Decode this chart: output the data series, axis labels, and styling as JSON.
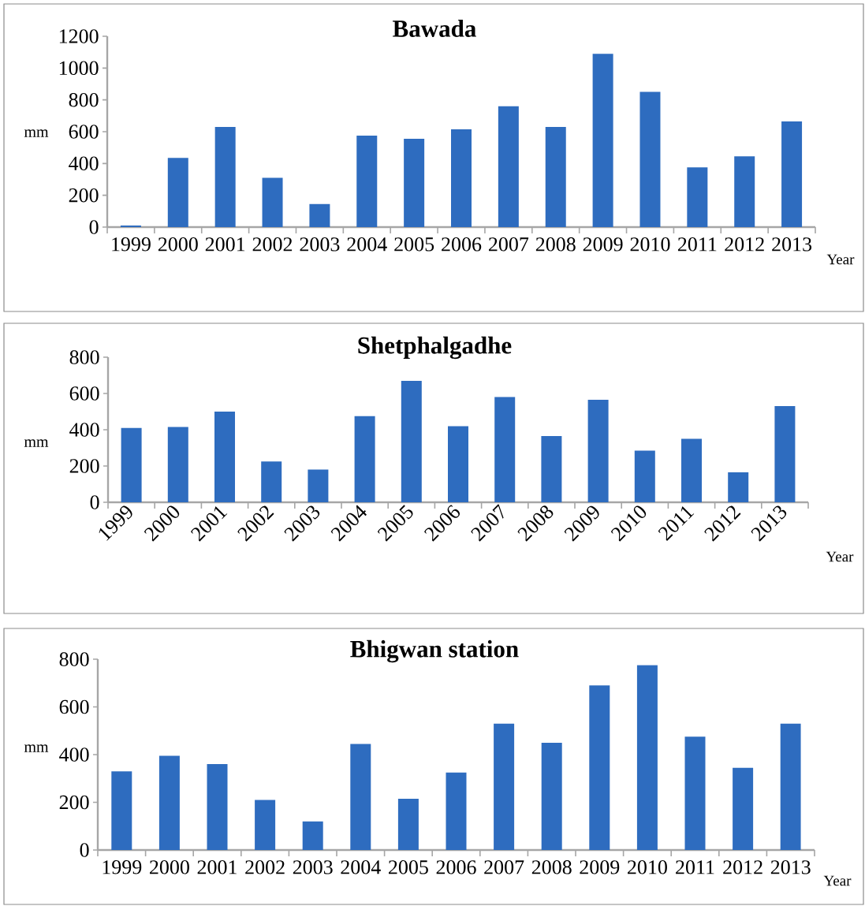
{
  "chart_data": [
    {
      "type": "bar",
      "title": "Bawada",
      "xlabel": "Year",
      "ylabel": "mm",
      "color": "#2e6cbf",
      "categories": [
        "1999",
        "2000",
        "2001",
        "2002",
        "2003",
        "2004",
        "2005",
        "2006",
        "2007",
        "2008",
        "2009",
        "2010",
        "2011",
        "2012",
        "2013"
      ],
      "values": [
        10,
        435,
        630,
        310,
        145,
        575,
        555,
        615,
        760,
        630,
        1090,
        850,
        375,
        445,
        665
      ],
      "ylim": [
        0,
        1200
      ],
      "yticks": [
        0,
        200,
        400,
        600,
        800,
        1000,
        1200
      ]
    },
    {
      "type": "bar",
      "title": "Shetphalgadhe",
      "xlabel": "Year",
      "ylabel": "mm",
      "color": "#2e6cbf",
      "categories": [
        "1999",
        "2000",
        "2001",
        "2002",
        "2003",
        "2004",
        "2005",
        "2006",
        "2007",
        "2008",
        "2009",
        "2010",
        "2011",
        "2012",
        "2013"
      ],
      "values": [
        410,
        415,
        500,
        225,
        180,
        475,
        670,
        420,
        580,
        365,
        565,
        285,
        350,
        165,
        530
      ],
      "ylim": [
        0,
        800
      ],
      "yticks": [
        0,
        200,
        400,
        600,
        800
      ]
    },
    {
      "type": "bar",
      "title": "Bhigwan station",
      "xlabel": "Year",
      "ylabel": "mm",
      "color": "#2e6cbf",
      "categories": [
        "1999",
        "2000",
        "2001",
        "2002",
        "2003",
        "2004",
        "2005",
        "2006",
        "2007",
        "2008",
        "2009",
        "2010",
        "2011",
        "2012",
        "2013"
      ],
      "values": [
        330,
        395,
        360,
        210,
        120,
        445,
        215,
        325,
        530,
        450,
        690,
        775,
        475,
        345,
        530
      ],
      "ylim": [
        0,
        800
      ],
      "yticks": [
        0,
        200,
        400,
        600,
        800
      ]
    }
  ]
}
